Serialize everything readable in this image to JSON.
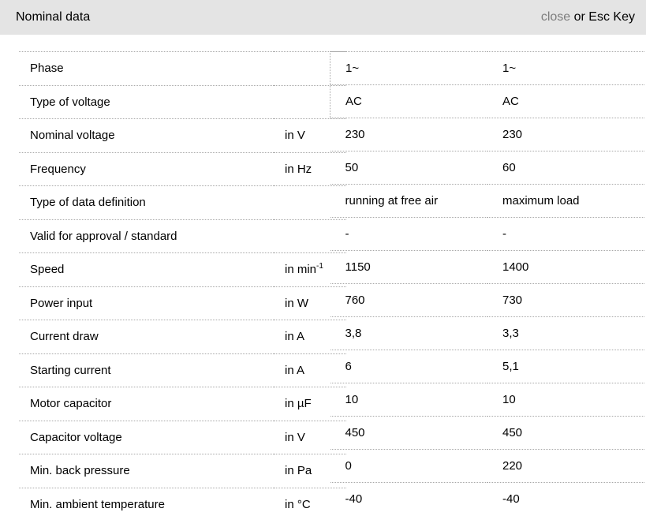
{
  "header": {
    "title": "Nominal data",
    "close_label": "close",
    "close_suffix": " or Esc Key"
  },
  "table": {
    "columns": [
      "parameter",
      "unit",
      "value_1",
      "value_2"
    ],
    "rows": [
      {
        "label": "Phase",
        "unit": "",
        "v1": "1~",
        "v2": "1~"
      },
      {
        "label": "Type of voltage",
        "unit": "",
        "v1": "AC",
        "v2": "AC"
      },
      {
        "label": "Nominal voltage",
        "unit": "in V",
        "v1": "230",
        "v2": "230"
      },
      {
        "label": "Frequency",
        "unit": "in Hz",
        "v1": "50",
        "v2": "60"
      },
      {
        "label": "Type of data definition",
        "unit": "",
        "v1": "running at free air",
        "v2": "maximum load"
      },
      {
        "label": "Valid for approval / standard",
        "unit": "",
        "v1": "-",
        "v2": "-"
      },
      {
        "label": "Speed",
        "unit": "in min^-1",
        "v1": "1150",
        "v2": "1400"
      },
      {
        "label": "Power input",
        "unit": "in W",
        "v1": "760",
        "v2": "730"
      },
      {
        "label": "Current draw",
        "unit": "in A",
        "v1": "3,8",
        "v2": "3,3"
      },
      {
        "label": "Starting current",
        "unit": "in A",
        "v1": "6",
        "v2": "5,1"
      },
      {
        "label": "Motor capacitor",
        "unit": "in µF",
        "v1": "10",
        "v2": "10"
      },
      {
        "label": "Capacitor voltage",
        "unit": "in V",
        "v1": "450",
        "v2": "450"
      },
      {
        "label": "Min. back pressure",
        "unit": "in Pa",
        "v1": "0",
        "v2": "220"
      },
      {
        "label": "Min. ambient temperature",
        "unit": "in °C",
        "v1": "-40",
        "v2": "-40"
      }
    ]
  },
  "colors": {
    "header_bg": "#e4e4e4",
    "close_link": "#7d7d7d",
    "text": "#000000",
    "divider": "#a8a8a8"
  }
}
